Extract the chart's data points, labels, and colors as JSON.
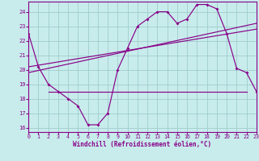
{
  "bg_color": "#c8ecec",
  "grid_color": "#a0cccc",
  "line_color": "#880088",
  "xlabel": "Windchill (Refroidissement éolien,°C)",
  "xmin": 0,
  "xmax": 23,
  "ymin": 15.7,
  "ymax": 24.7,
  "yticks": [
    16,
    17,
    18,
    19,
    20,
    21,
    22,
    23,
    24
  ],
  "xticks": [
    0,
    1,
    2,
    3,
    4,
    5,
    6,
    7,
    8,
    9,
    10,
    11,
    12,
    13,
    14,
    15,
    16,
    17,
    18,
    19,
    20,
    21,
    22,
    23
  ],
  "line1_x": [
    0,
    1,
    2,
    3,
    4,
    5,
    6,
    7,
    8,
    9,
    10,
    11,
    12,
    13,
    14,
    15,
    16,
    17,
    18,
    19,
    20,
    21,
    22,
    23
  ],
  "line1_y": [
    22.5,
    20.2,
    19.0,
    18.5,
    18.0,
    17.5,
    16.2,
    16.2,
    17.0,
    20.0,
    21.5,
    23.0,
    23.5,
    24.0,
    24.0,
    23.2,
    23.5,
    24.5,
    24.5,
    24.2,
    22.5,
    20.1,
    19.8,
    18.5
  ],
  "line2_x": [
    2,
    22
  ],
  "line2_y": [
    18.5,
    18.5
  ],
  "line3_x": [
    0,
    23
  ],
  "line3_y": [
    20.2,
    22.8
  ],
  "line4_x": [
    0,
    23
  ],
  "line4_y": [
    19.8,
    23.2
  ]
}
